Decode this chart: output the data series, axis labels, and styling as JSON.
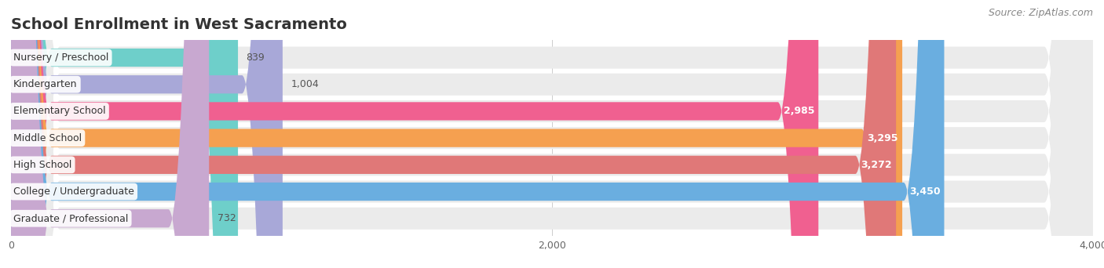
{
  "title": "School Enrollment in West Sacramento",
  "source": "Source: ZipAtlas.com",
  "categories": [
    "Nursery / Preschool",
    "Kindergarten",
    "Elementary School",
    "Middle School",
    "High School",
    "College / Undergraduate",
    "Graduate / Professional"
  ],
  "values": [
    839,
    1004,
    2985,
    3295,
    3272,
    3450,
    732
  ],
  "bar_colors": [
    "#6ecfca",
    "#a8a8d8",
    "#f06090",
    "#f5a050",
    "#e07878",
    "#6aaee0",
    "#c8a8d0"
  ],
  "bar_bg_color": "#ebebeb",
  "value_labels": [
    "839",
    "1,004",
    "2,985",
    "3,295",
    "3,272",
    "3,450",
    "732"
  ],
  "value_inside": [
    false,
    false,
    true,
    true,
    true,
    true,
    false
  ],
  "xlim": [
    0,
    4000
  ],
  "xticks": [
    0,
    2000,
    4000
  ],
  "background_color": "#ffffff",
  "title_fontsize": 14,
  "bar_label_fontsize": 9,
  "value_fontsize": 9,
  "source_fontsize": 9
}
